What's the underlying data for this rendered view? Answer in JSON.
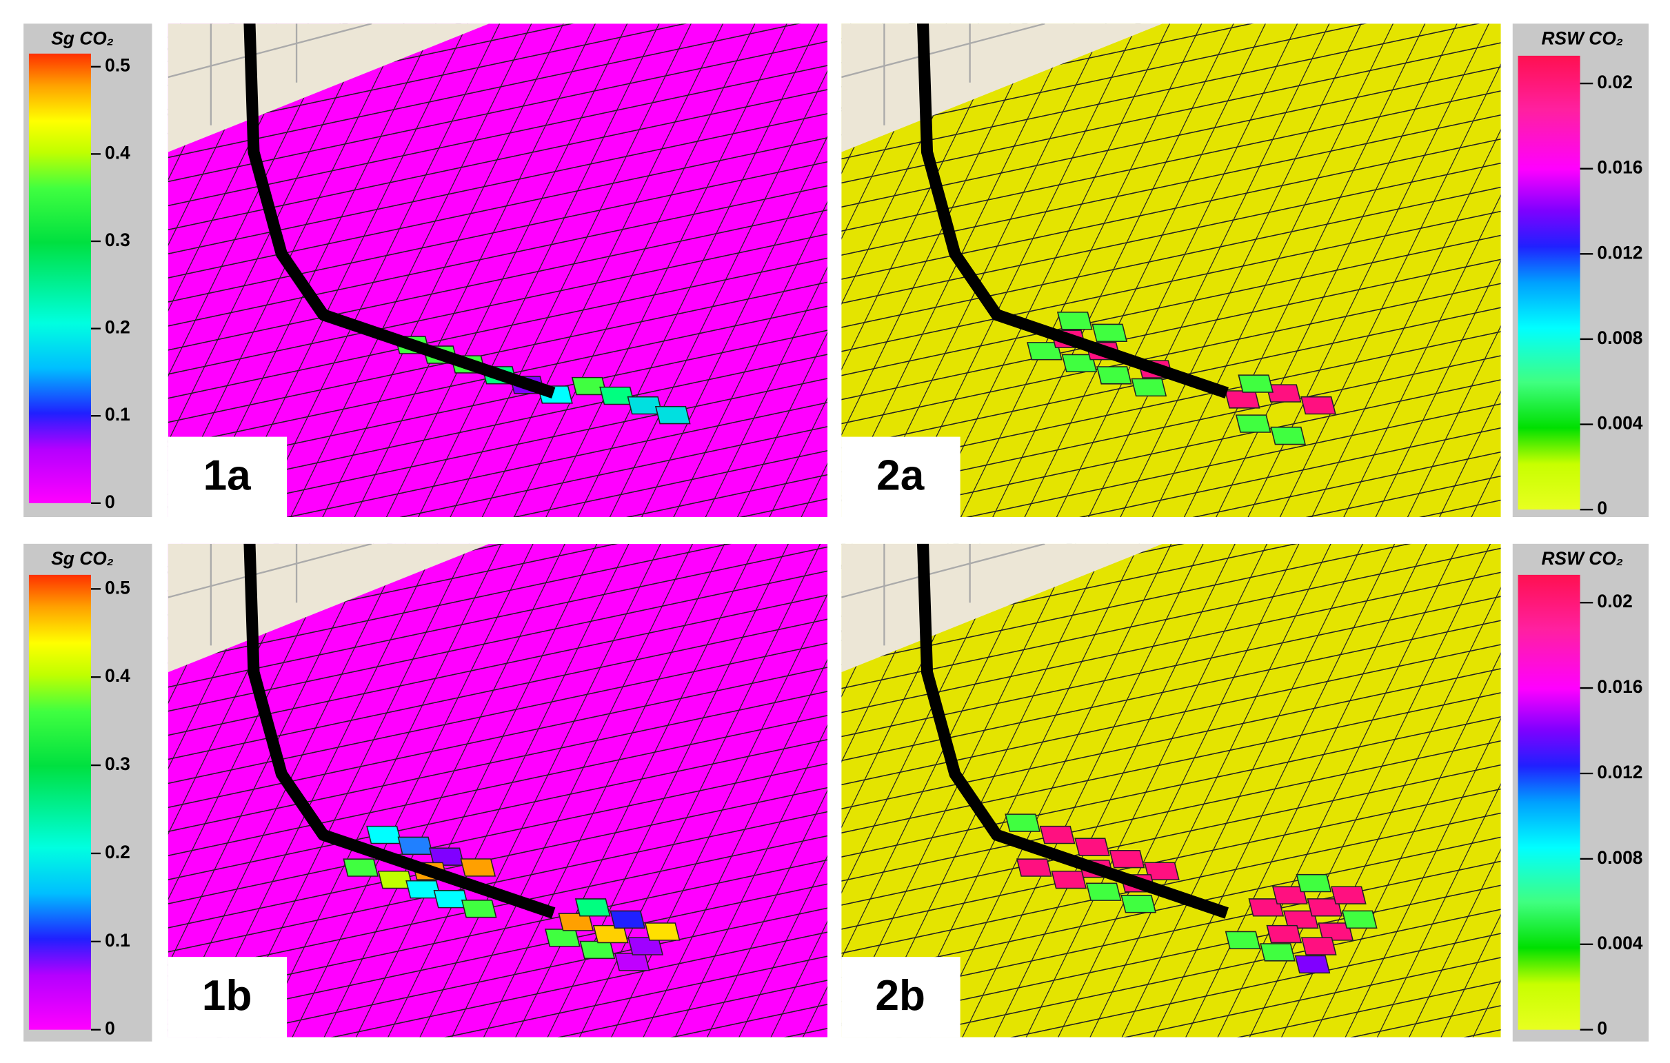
{
  "colorbars": [
    {
      "title": "Sg CO₂",
      "lim": [
        0,
        0.515
      ],
      "ticks": [
        0,
        0.1,
        0.2,
        0.3,
        0.4,
        0.5
      ]
    },
    {
      "title": "RSW CO₂",
      "lim": [
        0,
        0.0213
      ],
      "ticks": [
        0,
        0.004,
        0.008,
        0.012,
        0.016,
        0.02
      ]
    },
    {
      "title": "Sg CO₂",
      "lim": [
        0,
        0.516
      ],
      "ticks": [
        0,
        0.1,
        0.2,
        0.3,
        0.4,
        0.5
      ]
    },
    {
      "title": "RSW CO₂",
      "lim": [
        0,
        0.0213
      ],
      "ticks": [
        0,
        0.004,
        0.008,
        0.012,
        0.016,
        0.02
      ]
    }
  ],
  "panels": [
    {
      "label": "1a"
    },
    {
      "label": "2a"
    },
    {
      "label": "1b"
    },
    {
      "label": "2b"
    }
  ]
}
